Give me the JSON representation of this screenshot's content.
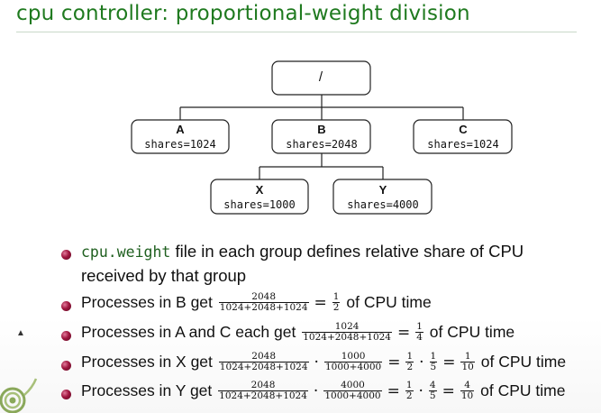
{
  "title": "cpu controller: proportional-weight division",
  "tree": {
    "root": "/",
    "nodes": {
      "A": {
        "name": "A",
        "shares": "shares=1024"
      },
      "B": {
        "name": "B",
        "shares": "shares=2048"
      },
      "C": {
        "name": "C",
        "shares": "shares=1024"
      },
      "X": {
        "name": "X",
        "shares": "shares=1000"
      },
      "Y": {
        "name": "Y",
        "shares": "shares=4000"
      }
    }
  },
  "bullets": {
    "b1": {
      "code": "cpu.weight",
      "text": " file in each group defines relative share of CPU",
      "text2": "received by that group"
    },
    "b2": {
      "prefix": "Processes in B get",
      "f1n": "2048",
      "f1d": "1024+2048+1024",
      "eq": "=",
      "f2n": "1",
      "f2d": "2",
      "suffix": "of CPU time"
    },
    "b3": {
      "prefix": "Processes in A and C each get",
      "f1n": "1024",
      "f1d": "1024+2048+1024",
      "eq": "=",
      "f2n": "1",
      "f2d": "4",
      "suffix": "of CPU time"
    },
    "b4": {
      "prefix": "Processes in X get",
      "f1n": "2048",
      "f1d": "1024+2048+1024",
      "dot1": "·",
      "f2n": "1000",
      "f2d": "1000+4000",
      "eq1": "=",
      "f3n": "1",
      "f3d": "2",
      "dot2": "·",
      "f4n": "1",
      "f4d": "5",
      "eq2": "=",
      "f5n": "1",
      "f5d": "10",
      "suffix": "of CPU time"
    },
    "b5": {
      "prefix": "Processes in Y get",
      "f1n": "2048",
      "f1d": "1024+2048+1024",
      "dot1": "·",
      "f2n": "4000",
      "f2d": "1000+4000",
      "eq1": "=",
      "f3n": "1",
      "f3d": "2",
      "dot2": "·",
      "f4n": "4",
      "f4d": "5",
      "eq2": "=",
      "f5n": "4",
      "f5d": "10",
      "suffix": "of CPU time"
    }
  },
  "colors": {
    "title": "#1f7a1f",
    "bullet": "#a0163f",
    "code": "#1f5f1f"
  }
}
